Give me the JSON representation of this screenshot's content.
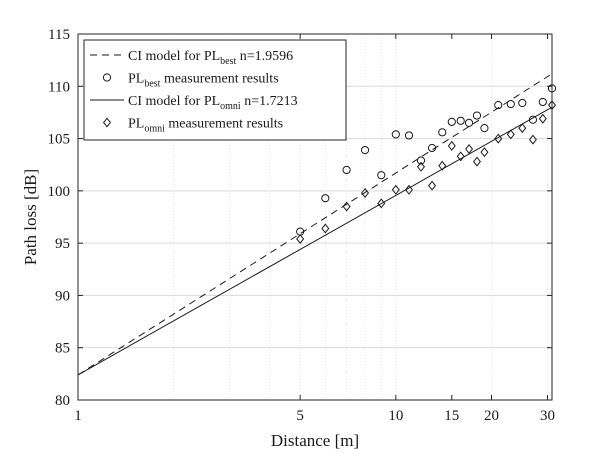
{
  "chart_data": {
    "type": "scatter",
    "xlabel": "Distance [m]",
    "ylabel": "Path loss [dB]",
    "xscale": "log",
    "xlim": [
      1,
      31
    ],
    "ylim": [
      80,
      115
    ],
    "xticks": [
      {
        "v": 1,
        "label": "1"
      },
      {
        "v": 5,
        "label": "5"
      },
      {
        "v": 10,
        "label": "10"
      },
      {
        "v": 15,
        "label": "15"
      },
      {
        "v": 20,
        "label": "20"
      },
      {
        "v": 30,
        "label": "30"
      }
    ],
    "yticks": [
      80,
      85,
      90,
      95,
      100,
      105,
      110,
      115
    ],
    "grid": true,
    "legend_position": "top-left",
    "legend": [
      {
        "pre": "CI model for PL",
        "sub": "best",
        "post": " n=1.9596",
        "style": "dashed-line"
      },
      {
        "pre": "PL",
        "sub": "best",
        "post": " measurement results",
        "style": "circle-marker"
      },
      {
        "pre": "CI model for PL",
        "sub": "omni",
        "post": " n=1.7213",
        "style": "solid-line"
      },
      {
        "pre": "PL",
        "sub": "omni",
        "post": " measurement results",
        "style": "diamond-marker"
      }
    ],
    "series": [
      {
        "kind": "line",
        "style": "dashed",
        "x": [
          1,
          31
        ],
        "y": [
          82.4,
          111.2
        ]
      },
      {
        "kind": "scatter",
        "marker": "circle",
        "x": [
          5,
          6,
          7,
          8,
          9,
          10,
          11,
          12,
          13,
          14,
          15,
          16,
          17,
          18,
          19,
          21,
          23,
          25,
          27,
          29,
          31
        ],
        "y": [
          96.1,
          99.3,
          102.0,
          103.9,
          101.5,
          105.4,
          105.3,
          102.9,
          104.1,
          105.6,
          106.6,
          106.7,
          106.5,
          107.2,
          106.0,
          108.2,
          108.3,
          108.4,
          106.8,
          108.5,
          109.8
        ]
      },
      {
        "kind": "line",
        "style": "solid",
        "x": [
          1,
          31
        ],
        "y": [
          82.4,
          108.0
        ]
      },
      {
        "kind": "scatter",
        "marker": "diamond",
        "x": [
          5,
          6,
          7,
          8,
          9,
          10,
          11,
          12,
          13,
          14,
          15,
          16,
          17,
          18,
          19,
          21,
          23,
          25,
          27,
          29,
          31
        ],
        "y": [
          95.4,
          96.4,
          98.5,
          99.8,
          98.8,
          100.1,
          100.1,
          102.3,
          100.5,
          102.4,
          104.3,
          103.3,
          104.0,
          102.8,
          103.7,
          105.0,
          105.4,
          106.0,
          104.9,
          106.9,
          108.2
        ]
      }
    ]
  }
}
